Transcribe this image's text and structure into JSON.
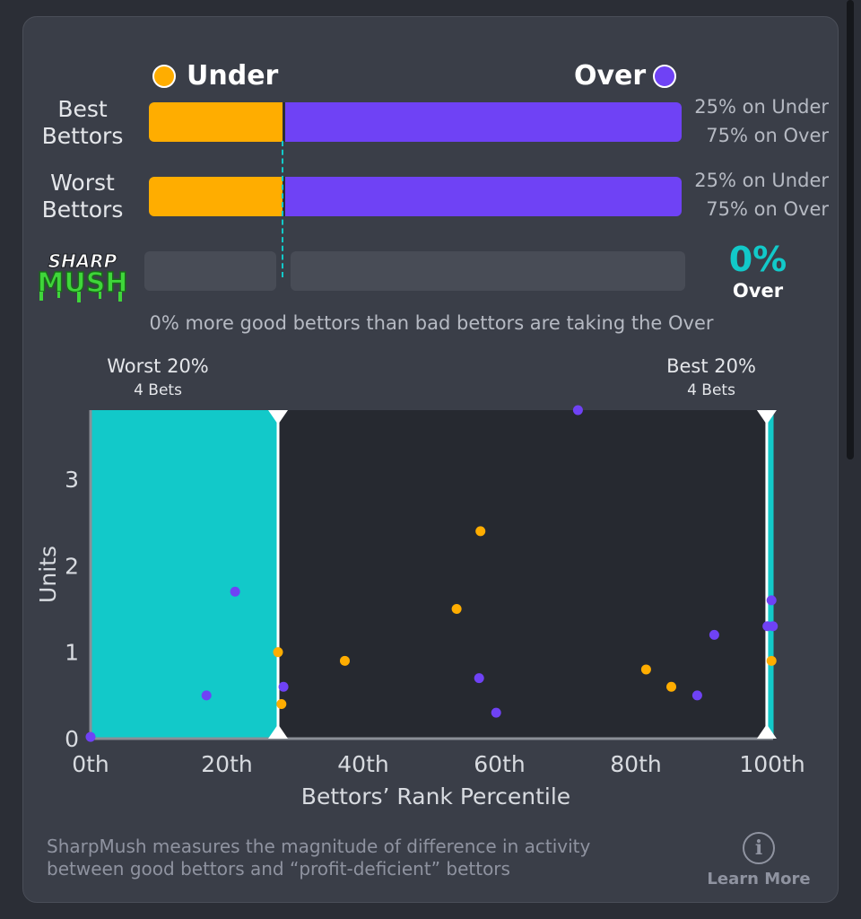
{
  "legend": {
    "under_label": "Under",
    "over_label": "Over"
  },
  "rows": [
    {
      "label_line1": "Best",
      "label_line2": "Bettors",
      "under_pct": 25,
      "over_pct": 75,
      "under_text": "25% on Under",
      "over_text": "75% on Over"
    },
    {
      "label_line1": "Worst",
      "label_line2": "Bettors",
      "under_pct": 25,
      "over_pct": 75,
      "under_text": "25% on Under",
      "over_text": "75% on Over"
    }
  ],
  "sharpmush": {
    "logo_line1": "SHARP",
    "logo_line2": "MUSH",
    "value": "0%",
    "side": "Over",
    "summary": "0% more good bettors than bad bettors are taking the Over"
  },
  "chart_data": {
    "type": "scatter",
    "xlabel": "Bettors’ Rank Percentile",
    "ylabel": "Units",
    "xlim": [
      0,
      100
    ],
    "ylim": [
      0,
      3.8
    ],
    "x_ticks": [
      "0th",
      "20th",
      "40th",
      "60th",
      "80th",
      "100th"
    ],
    "y_ticks": [
      "0",
      "1",
      "2",
      "3"
    ],
    "worst_band": {
      "title": "Worst 20%",
      "subtitle": "4 Bets",
      "x_range": [
        0,
        27.5
      ]
    },
    "best_band": {
      "title": "Best 20%",
      "subtitle": "4 Bets",
      "x_range": [
        99.2,
        100.2
      ]
    },
    "series": [
      {
        "side": "Over",
        "color": "#6f42f5",
        "points": [
          [
            0,
            0.02
          ],
          [
            17,
            0.5
          ],
          [
            21.2,
            1.7
          ],
          [
            28.3,
            0.6
          ],
          [
            57,
            0.7
          ],
          [
            59.5,
            0.3
          ],
          [
            71.5,
            3.8
          ],
          [
            89,
            0.5
          ],
          [
            91.5,
            1.2
          ],
          [
            99.3,
            1.3
          ],
          [
            99.9,
            1.6
          ],
          [
            100.1,
            1.3
          ]
        ]
      },
      {
        "side": "Under",
        "color": "#ffad00",
        "points": [
          [
            27.5,
            1.0
          ],
          [
            28,
            0.4
          ],
          [
            37.3,
            0.9
          ],
          [
            53.7,
            1.5
          ],
          [
            57.2,
            2.4
          ],
          [
            81.5,
            0.8
          ],
          [
            85.2,
            0.6
          ],
          [
            99.9,
            0.9
          ]
        ]
      }
    ]
  },
  "footer": {
    "description_line1": "SharpMush measures the magnitude of difference in activity",
    "description_line2": "between good bettors and “profit-deficient” bettors",
    "learn_more": "Learn More"
  },
  "colors": {
    "under": "#ffad00",
    "over": "#6f42f5",
    "accent": "#12c9c9",
    "mush_green": "#3fd63a"
  }
}
